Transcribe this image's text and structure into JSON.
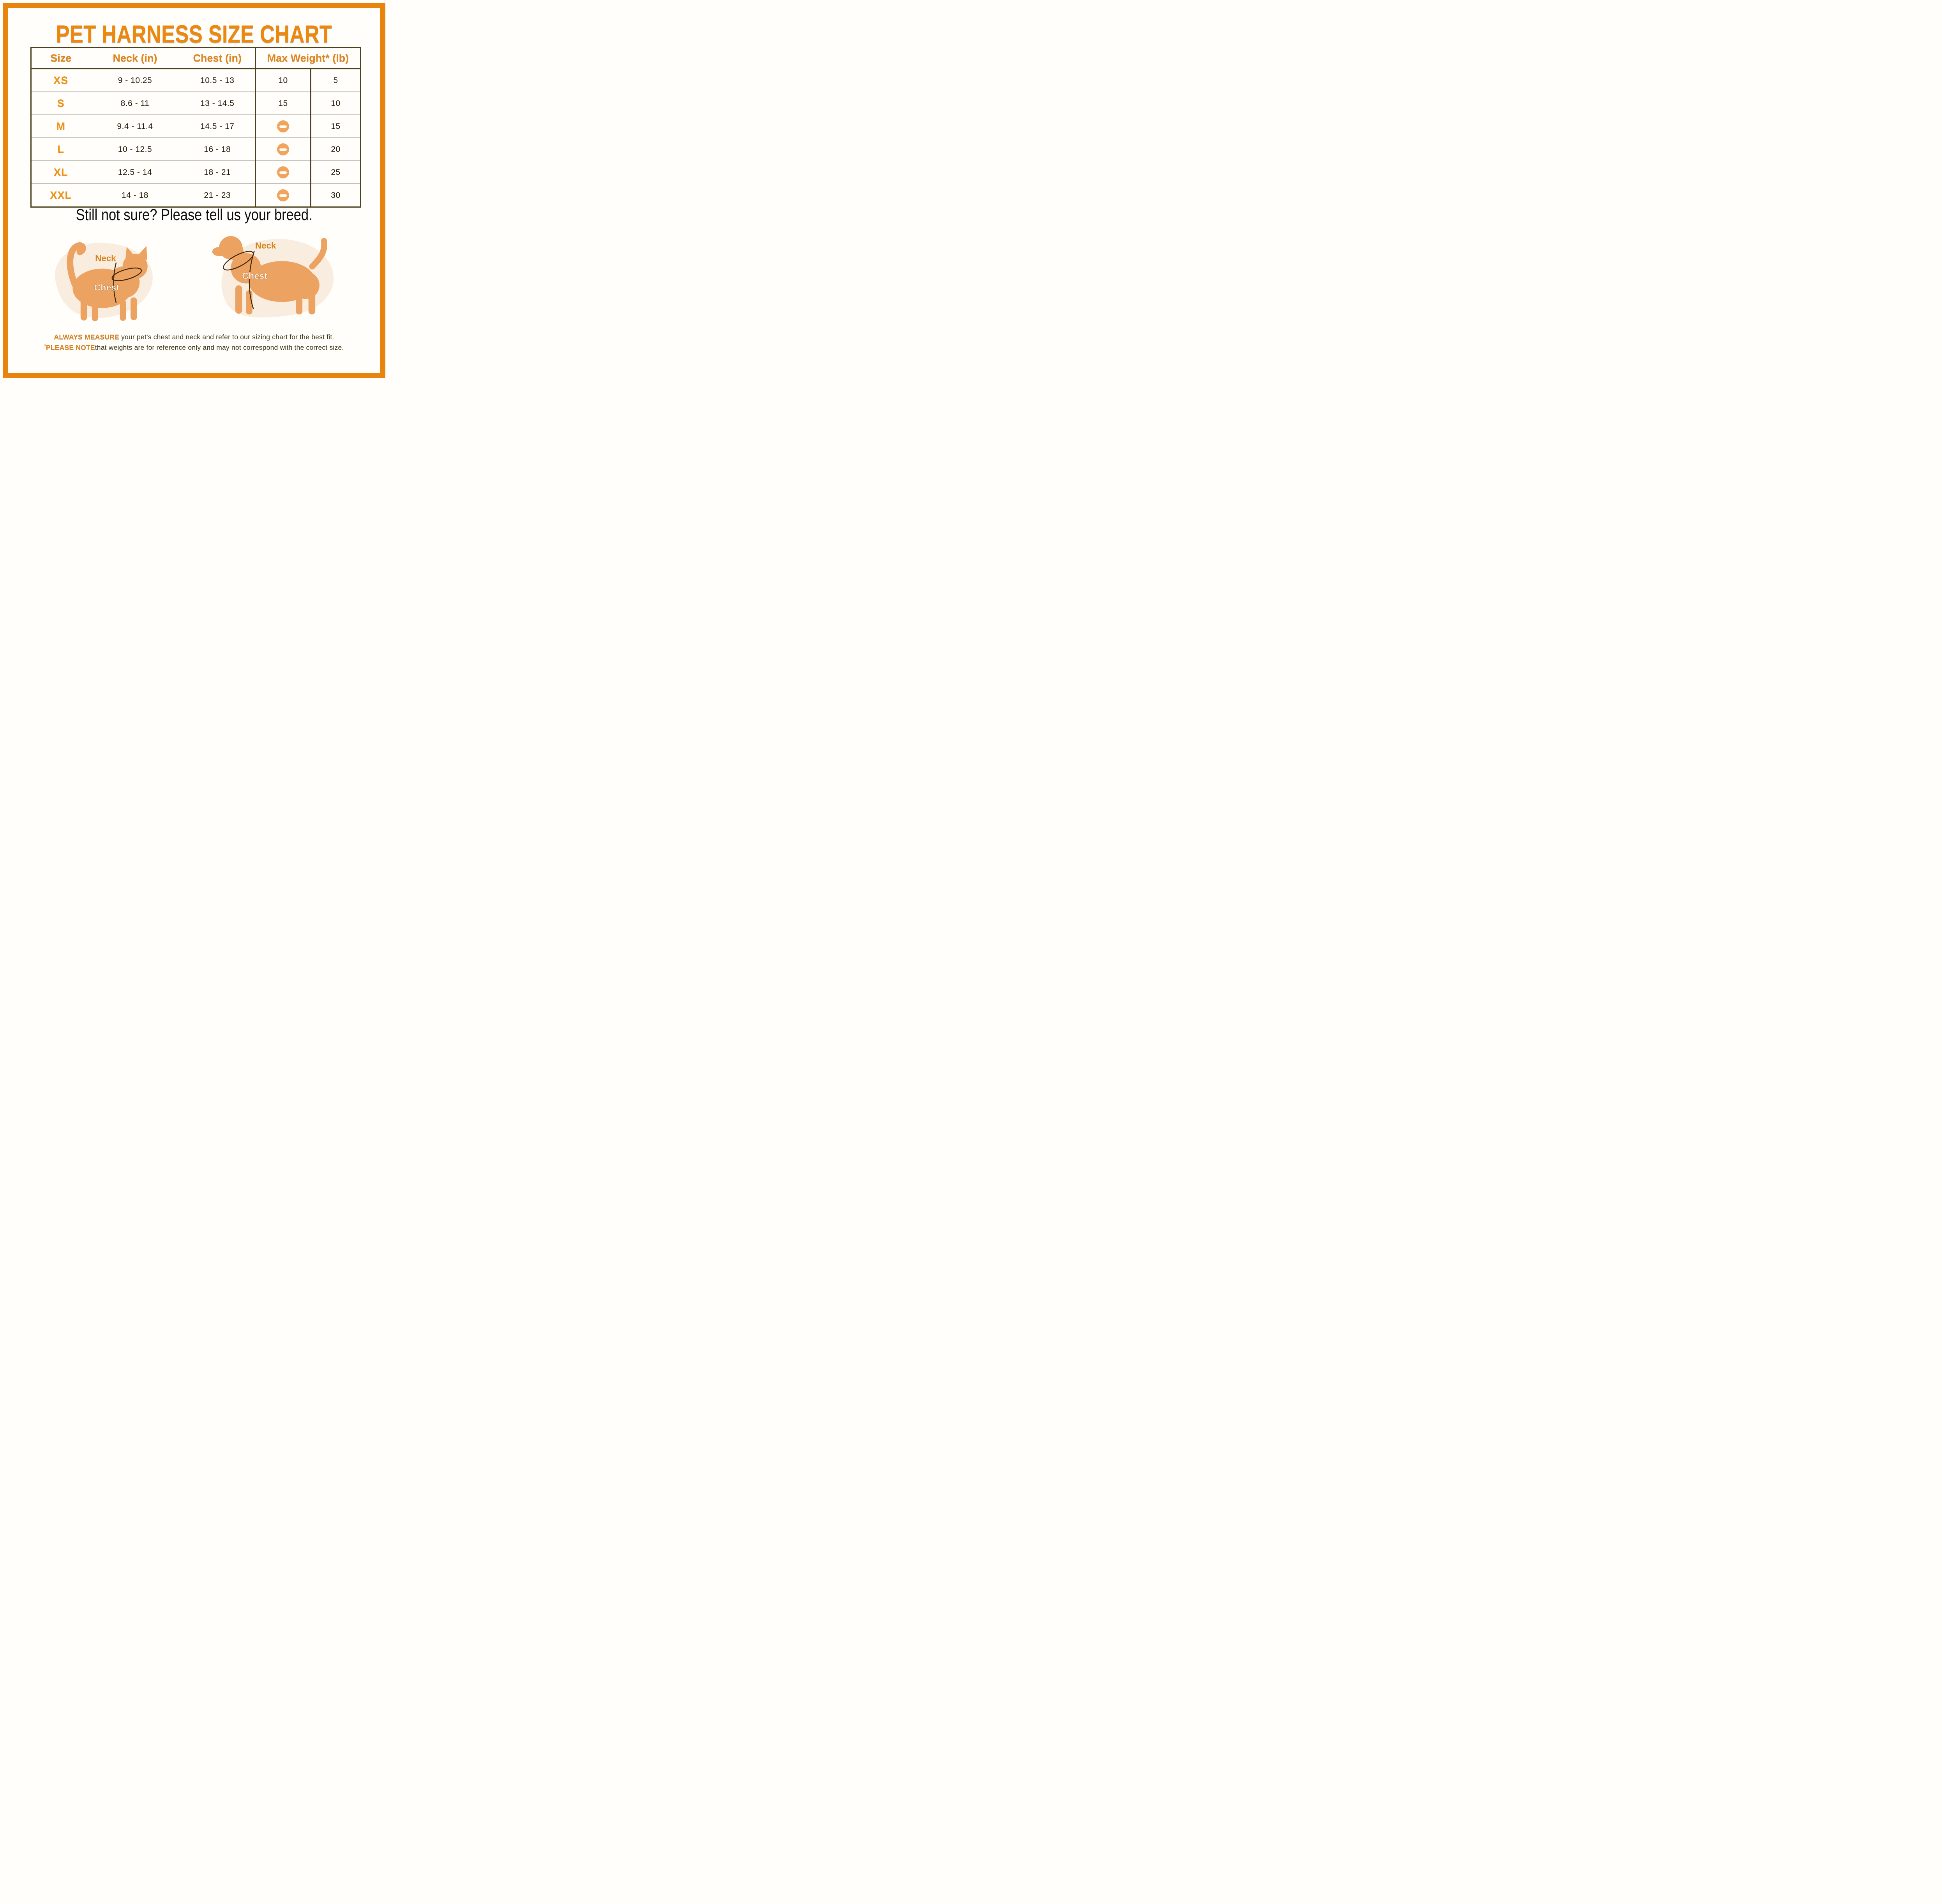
{
  "title": "PET HARNESS SIZE CHART",
  "subtitle": "Still not sure? Please tell us your breed.",
  "table": {
    "headers": {
      "size": "Size",
      "neck": "Neck (in)",
      "chest": "Chest (in)",
      "max_weight": "Max Weight* (lb)"
    },
    "rows": [
      {
        "size": "XS",
        "neck": "9 - 10.25",
        "chest": "10.5 - 13",
        "max_weight_1": "10",
        "max_weight_2": "5"
      },
      {
        "size": "S",
        "neck": "8.6 - 11",
        "chest": "13 - 14.5",
        "max_weight_1": "15",
        "max_weight_2": "10"
      },
      {
        "size": "M",
        "neck": "9.4 - 11.4",
        "chest": "14.5 - 17",
        "max_weight_1": "icon",
        "max_weight_2": "15"
      },
      {
        "size": "L",
        "neck": "10 - 12.5",
        "chest": "16 - 18",
        "max_weight_1": "icon",
        "max_weight_2": "20"
      },
      {
        "size": "XL",
        "neck": "12.5 - 14",
        "chest": "18 - 21",
        "max_weight_1": "icon",
        "max_weight_2": "25"
      },
      {
        "size": "XXL",
        "neck": "14 - 18",
        "chest": "21 - 23",
        "max_weight_1": "icon",
        "max_weight_2": "30"
      }
    ],
    "icon_meaning": "minus-icon (no weight given)"
  },
  "chart_data": {
    "type": "table",
    "title": "PET HARNESS SIZE CHART",
    "columns": [
      "Size",
      "Neck (in)",
      "Chest (in)",
      "Max Weight* (lb)",
      "Max Weight* (lb) 2"
    ],
    "rows": [
      [
        "XS",
        "9 - 10.25",
        "10.5 - 13",
        "10",
        "5"
      ],
      [
        "S",
        "8.6 - 11",
        "13 - 14.5",
        "15",
        "10"
      ],
      [
        "M",
        "9.4 - 11.4",
        "14.5 - 17",
        "—",
        "15"
      ],
      [
        "L",
        "10 - 12.5",
        "16 - 18",
        "—",
        "20"
      ],
      [
        "XL",
        "12.5 - 14",
        "18 - 21",
        "—",
        "25"
      ],
      [
        "XXL",
        "14 - 18",
        "21 - 23",
        "—",
        "30"
      ]
    ]
  },
  "figures": {
    "cat": {
      "neck_label": "Neck",
      "chest_label": "Chest"
    },
    "dog": {
      "neck_label": "Neck",
      "chest_label": "Chest"
    }
  },
  "footer": {
    "line1_bold": "ALWAYS MEASURE",
    "line1_rest": " your pet’s chest and neck and refer to our sizing chart for the best fit.",
    "line2_mark": "*",
    "line2_bold": "PLEASE NOTE",
    "line2_rest": "that weights are for reference only and may not correspond with the correct size."
  },
  "colors": {
    "accent_orange": "#e8830d",
    "table_border": "#4c421f",
    "row_divider": "#98988b",
    "minus_icon": "#f0a45c",
    "silhouette": "#eca261",
    "blob_background": "#f9eddf",
    "strap_line": "#3f2a10",
    "footer_text": "#3c3518"
  }
}
